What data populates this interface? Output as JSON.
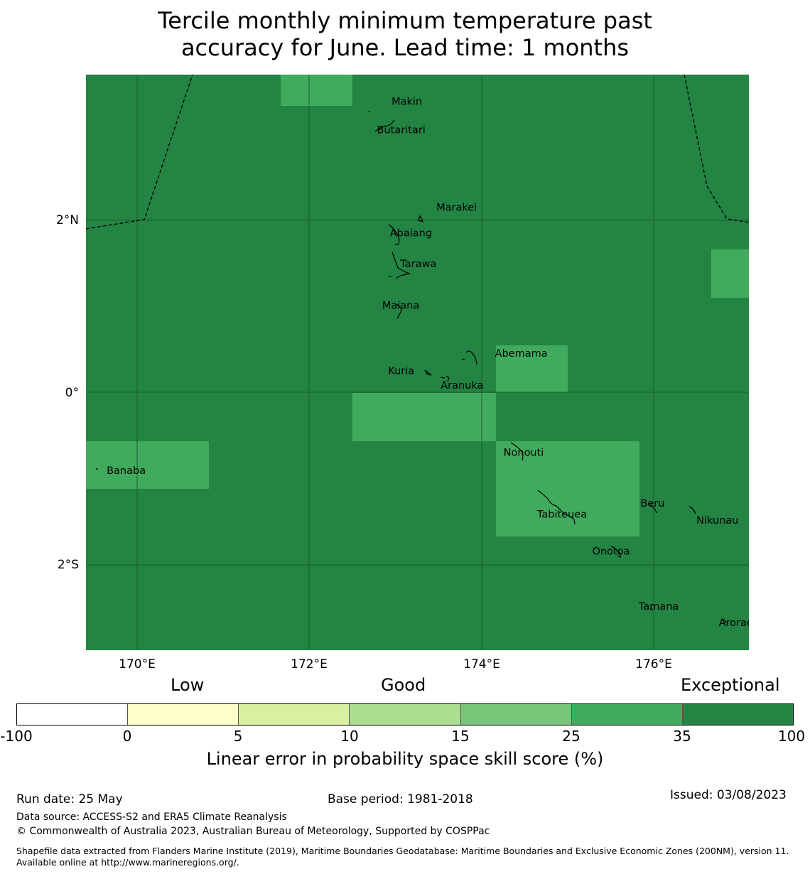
{
  "title_line1": "Tercile monthly minimum temperature past",
  "title_line2": "accuracy for June. Lead time: 1 months",
  "map": {
    "lon_range": [
      169.4,
      177.1
    ],
    "lat_range": [
      -2.99,
      3.7
    ],
    "background_color": "#238443",
    "highlight_color": "#41ab5d",
    "grid_lons": [
      170,
      172,
      174,
      176
    ],
    "grid_lats": [
      2,
      0,
      -2
    ],
    "lon_labels": [
      "170°E",
      "172°E",
      "174°E",
      "176°E"
    ],
    "lat_labels": [
      "2°N",
      "0°",
      "2°S"
    ],
    "islands": [
      {
        "name": "Makin",
        "lon": 172.95,
        "lat": 3.35
      },
      {
        "name": "Butaritari",
        "lon": 172.78,
        "lat": 3.02
      },
      {
        "name": "Marakei",
        "lon": 173.47,
        "lat": 2.12
      },
      {
        "name": "Abaiang",
        "lon": 172.93,
        "lat": 1.82
      },
      {
        "name": "Tarawa",
        "lon": 173.05,
        "lat": 1.46
      },
      {
        "name": "Maiana",
        "lon": 172.84,
        "lat": 0.98
      },
      {
        "name": "Abemama",
        "lon": 174.15,
        "lat": 0.42
      },
      {
        "name": "Kuria",
        "lon": 172.91,
        "lat": 0.22
      },
      {
        "name": "Aranuka",
        "lon": 173.52,
        "lat": 0.05
      },
      {
        "name": "Nonouti",
        "lon": 174.25,
        "lat": -0.73
      },
      {
        "name": "Banaba",
        "lon": 169.64,
        "lat": -0.94
      },
      {
        "name": "Beru",
        "lon": 175.84,
        "lat": -1.32
      },
      {
        "name": "Tabiteuea",
        "lon": 174.64,
        "lat": -1.45
      },
      {
        "name": "Nikunau",
        "lon": 176.49,
        "lat": -1.52
      },
      {
        "name": "Onotoa",
        "lon": 175.28,
        "lat": -1.88
      },
      {
        "name": "Tamana",
        "lon": 175.82,
        "lat": -2.52
      },
      {
        "name": "Arorae",
        "lon": 176.75,
        "lat": -2.71
      }
    ]
  },
  "colorbar": {
    "category_labels": [
      "Low",
      "Good",
      "Exceptional"
    ],
    "colors": [
      "#ffffff",
      "#ffffcc",
      "#d9f0a3",
      "#addd8e",
      "#78c679",
      "#41ab5d",
      "#238443"
    ],
    "ticks": [
      "-100",
      "0",
      "5",
      "10",
      "15",
      "25",
      "35",
      "100"
    ],
    "title": "Linear error in probability space skill score (%)"
  },
  "footer": {
    "run_date": "Run date: 25 May",
    "base_period": "Base period: 1981-2018",
    "issued": "Issued: 03/08/2023",
    "data_source": "Data source: ACCESS-S2 and ERA5 Climate Reanalysis",
    "copyright": "© Commonwealth of Australia 2023, Australian Bureau of Meteorology, Supported by COSPPac",
    "shapefile": "Shapefile data extracted from Flanders Marine Institute (2019), Maritime Boundaries Geodatabase: Maritime Boundaries and Exclusive Economic Zones (200NM), version 11. Available online at http://www.marineregions.org/."
  }
}
